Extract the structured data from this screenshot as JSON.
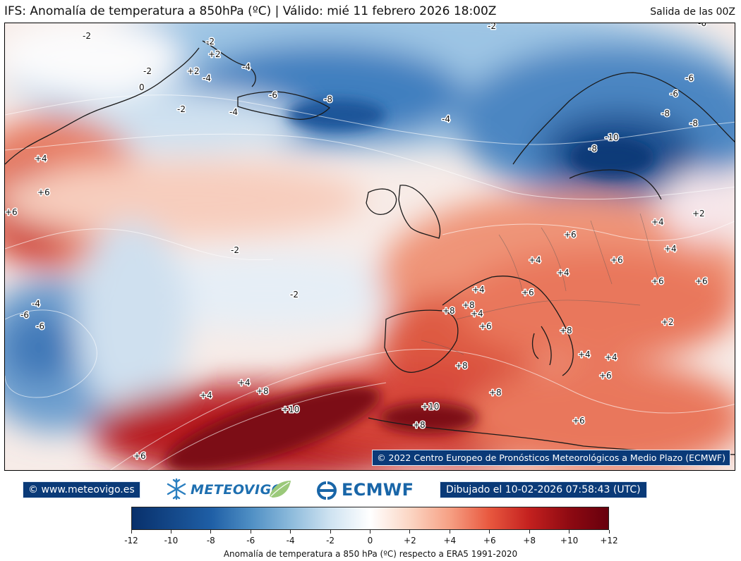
{
  "header": {
    "title": "IFS: Anomalía de temperatura a 850hPa  (ºC) | Válido: mié 11 febrero 2026 18:00Z",
    "run": "Salida de las 00Z"
  },
  "map": {
    "copyright": "© 2022 Centro Europeo de Pronósticos Meteorológicos a Medio Plazo (ECMWF)",
    "contour_labels": [
      {
        "id": "greenland-n-m2",
        "text": "-2"
      },
      {
        "id": "greenland-m2a",
        "text": "-2"
      },
      {
        "id": "greenland-p2",
        "text": "+2"
      },
      {
        "id": "greenland-p2b",
        "text": "+2"
      },
      {
        "id": "greenland-m4",
        "text": "-4"
      },
      {
        "id": "greenland-0",
        "text": "0"
      },
      {
        "id": "greenland-m2b",
        "text": "-2"
      },
      {
        "id": "greenland-m4b",
        "text": "-4"
      },
      {
        "id": "iceland-m2",
        "text": "-2"
      },
      {
        "id": "iceland-m4",
        "text": "-4"
      },
      {
        "id": "iceland-m6",
        "text": "-6"
      },
      {
        "id": "iceland-m8",
        "text": "-8"
      },
      {
        "id": "norsea-m4",
        "text": "-4"
      },
      {
        "id": "top-m2",
        "text": "-2"
      },
      {
        "id": "top-m6",
        "text": "-6"
      },
      {
        "id": "scan-m6a",
        "text": "-6"
      },
      {
        "id": "scan-m6b",
        "text": "-6"
      },
      {
        "id": "scan-m8a",
        "text": "-8"
      },
      {
        "id": "scan-m8b",
        "text": "-8"
      },
      {
        "id": "scan-m10",
        "text": "-10"
      },
      {
        "id": "scan-m8c",
        "text": "-8"
      },
      {
        "id": "atl-p4",
        "text": "+4"
      },
      {
        "id": "atl-p6",
        "text": "+6"
      },
      {
        "id": "left-p6",
        "text": "+6"
      },
      {
        "id": "midatl-m2a",
        "text": "-2"
      },
      {
        "id": "midatl-m2b",
        "text": "-2"
      },
      {
        "id": "sw-m4",
        "text": "-4"
      },
      {
        "id": "sw-m6a",
        "text": "-6"
      },
      {
        "id": "sw-m6b",
        "text": "-6"
      },
      {
        "id": "eu-p4a",
        "text": "+4"
      },
      {
        "id": "eu-p2",
        "text": "+2"
      },
      {
        "id": "eu-p6a",
        "text": "+6"
      },
      {
        "id": "eu-p4b",
        "text": "+4"
      },
      {
        "id": "eu-p6b",
        "text": "+6"
      },
      {
        "id": "eu-p4c",
        "text": "+4"
      },
      {
        "id": "eu-p4d",
        "text": "+4"
      },
      {
        "id": "eu-p6c",
        "text": "+6"
      },
      {
        "id": "eu-p6d",
        "text": "+6"
      },
      {
        "id": "fr-p4",
        "text": "+4"
      },
      {
        "id": "fr-p6",
        "text": "+6"
      },
      {
        "id": "sp-p8a",
        "text": "+8"
      },
      {
        "id": "sp-p8b",
        "text": "+8"
      },
      {
        "id": "sp-p4",
        "text": "+4"
      },
      {
        "id": "sp-p6",
        "text": "+6"
      },
      {
        "id": "it-p8",
        "text": "+8"
      },
      {
        "id": "balk-p2",
        "text": "+2"
      },
      {
        "id": "med-p4a",
        "text": "+4"
      },
      {
        "id": "med-p4b",
        "text": "+4"
      },
      {
        "id": "med-p6",
        "text": "+6"
      },
      {
        "id": "sp-p8c",
        "text": "+8"
      },
      {
        "id": "af-p8",
        "text": "+8"
      },
      {
        "id": "af-p10",
        "text": "+10"
      },
      {
        "id": "af-p8b",
        "text": "+8"
      },
      {
        "id": "af-p6",
        "text": "+6"
      },
      {
        "id": "satl-p4a",
        "text": "+4"
      },
      {
        "id": "satl-p4b",
        "text": "+4"
      },
      {
        "id": "satl-p8",
        "text": "+8"
      },
      {
        "id": "satl-p10",
        "text": "+10"
      },
      {
        "id": "satl-p6",
        "text": "+6"
      }
    ]
  },
  "footer": {
    "site": "© www.meteovigo.es",
    "meteovigo_logo": "METEOVIGO",
    "ecmwf_logo": "ECMWF",
    "drawn": "Dibujado el 10-02-2026 07:58:43 (UTC)"
  },
  "colorbar": {
    "ticks": [
      "-12",
      "-10",
      "-8",
      "-6",
      "-4",
      "-2",
      "0",
      "+2",
      "+4",
      "+6",
      "+8",
      "+10",
      "+12"
    ],
    "caption": "Anomalía de temperatura a 850 hPa (ºC) respecto a ERA5 1991-2020",
    "colors": {
      "min": "#08306b",
      "mid": "#ffffff",
      "max": "#67000d"
    }
  }
}
